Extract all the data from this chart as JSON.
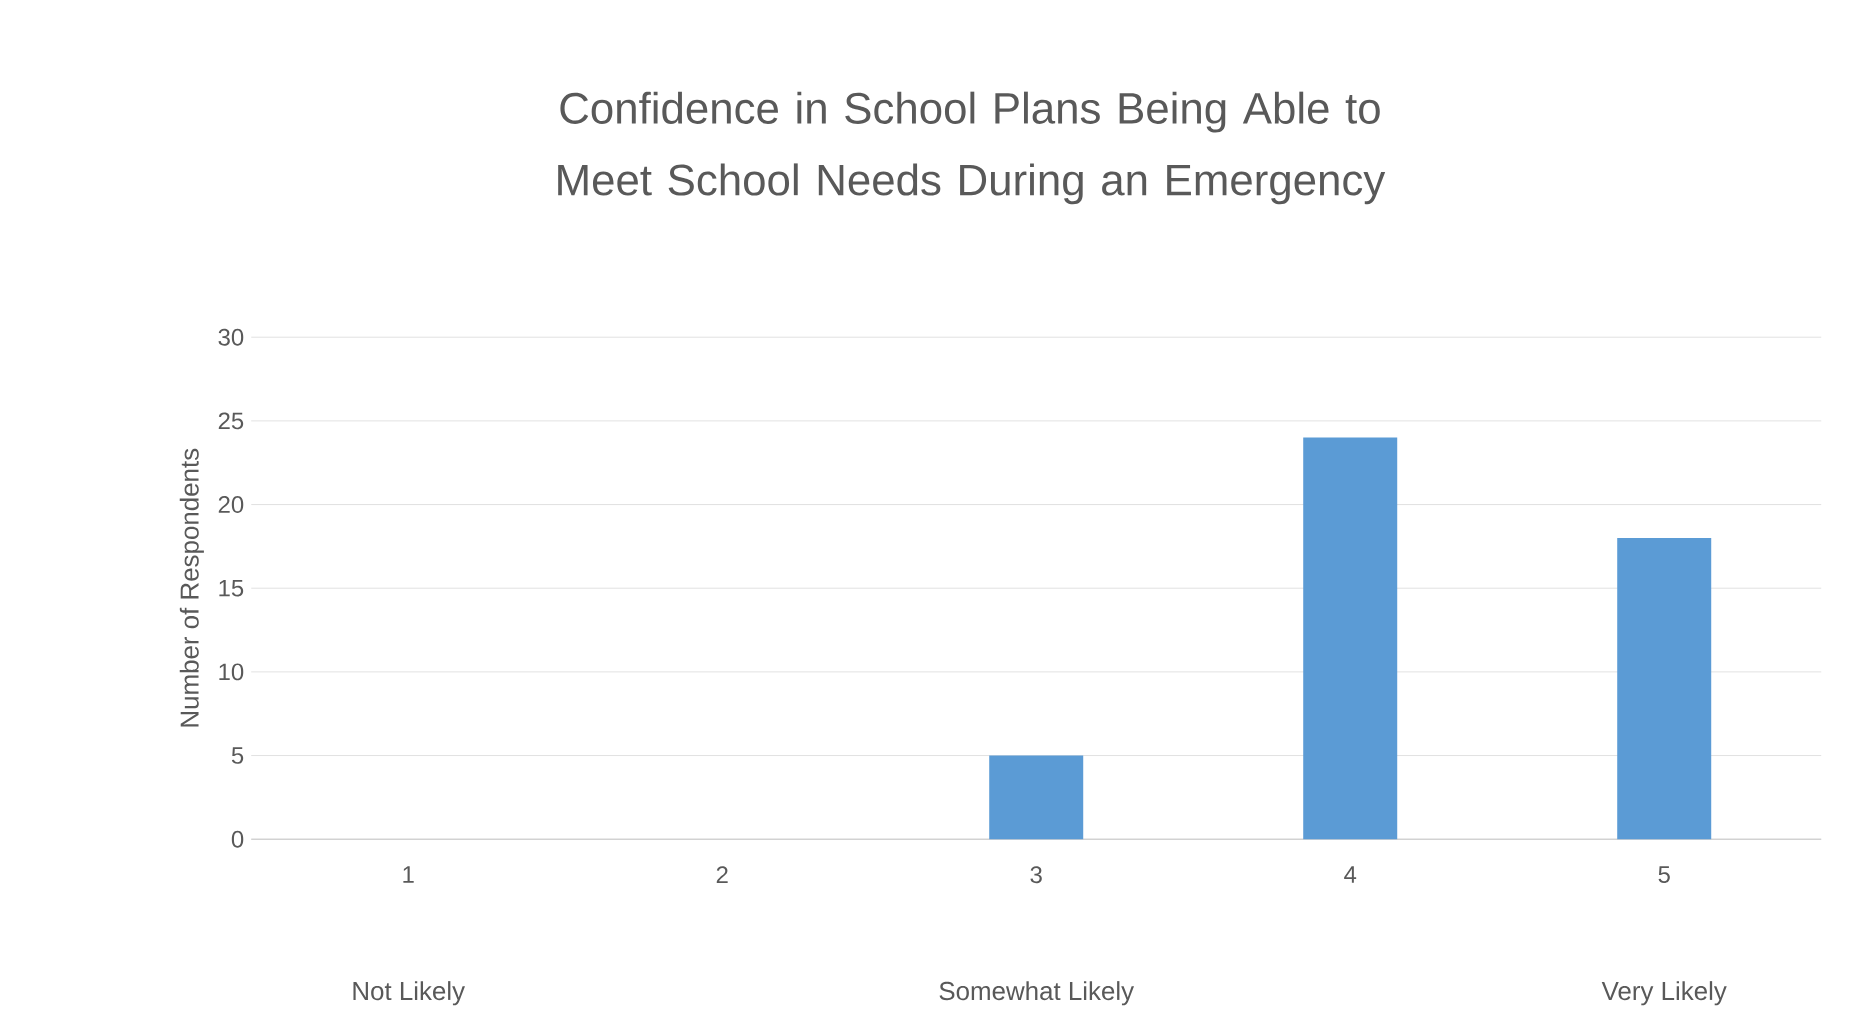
{
  "chart_data": {
    "type": "bar",
    "title": "Confidence in School Plans Being Able to Meet School Needs During an Emergency",
    "ylabel": "Number of Respondents",
    "categories": [
      "1",
      "2",
      "3",
      "4",
      "5"
    ],
    "values": [
      0,
      0,
      5,
      24,
      18
    ],
    "color": "#5b9bd5",
    "ylim": [
      0,
      30
    ],
    "yticks": [
      0,
      5,
      10,
      15,
      20,
      25,
      30
    ],
    "grid": "y",
    "annotations": [
      "Not Likely",
      "Somewhat Likely",
      "Very Likely"
    ]
  }
}
